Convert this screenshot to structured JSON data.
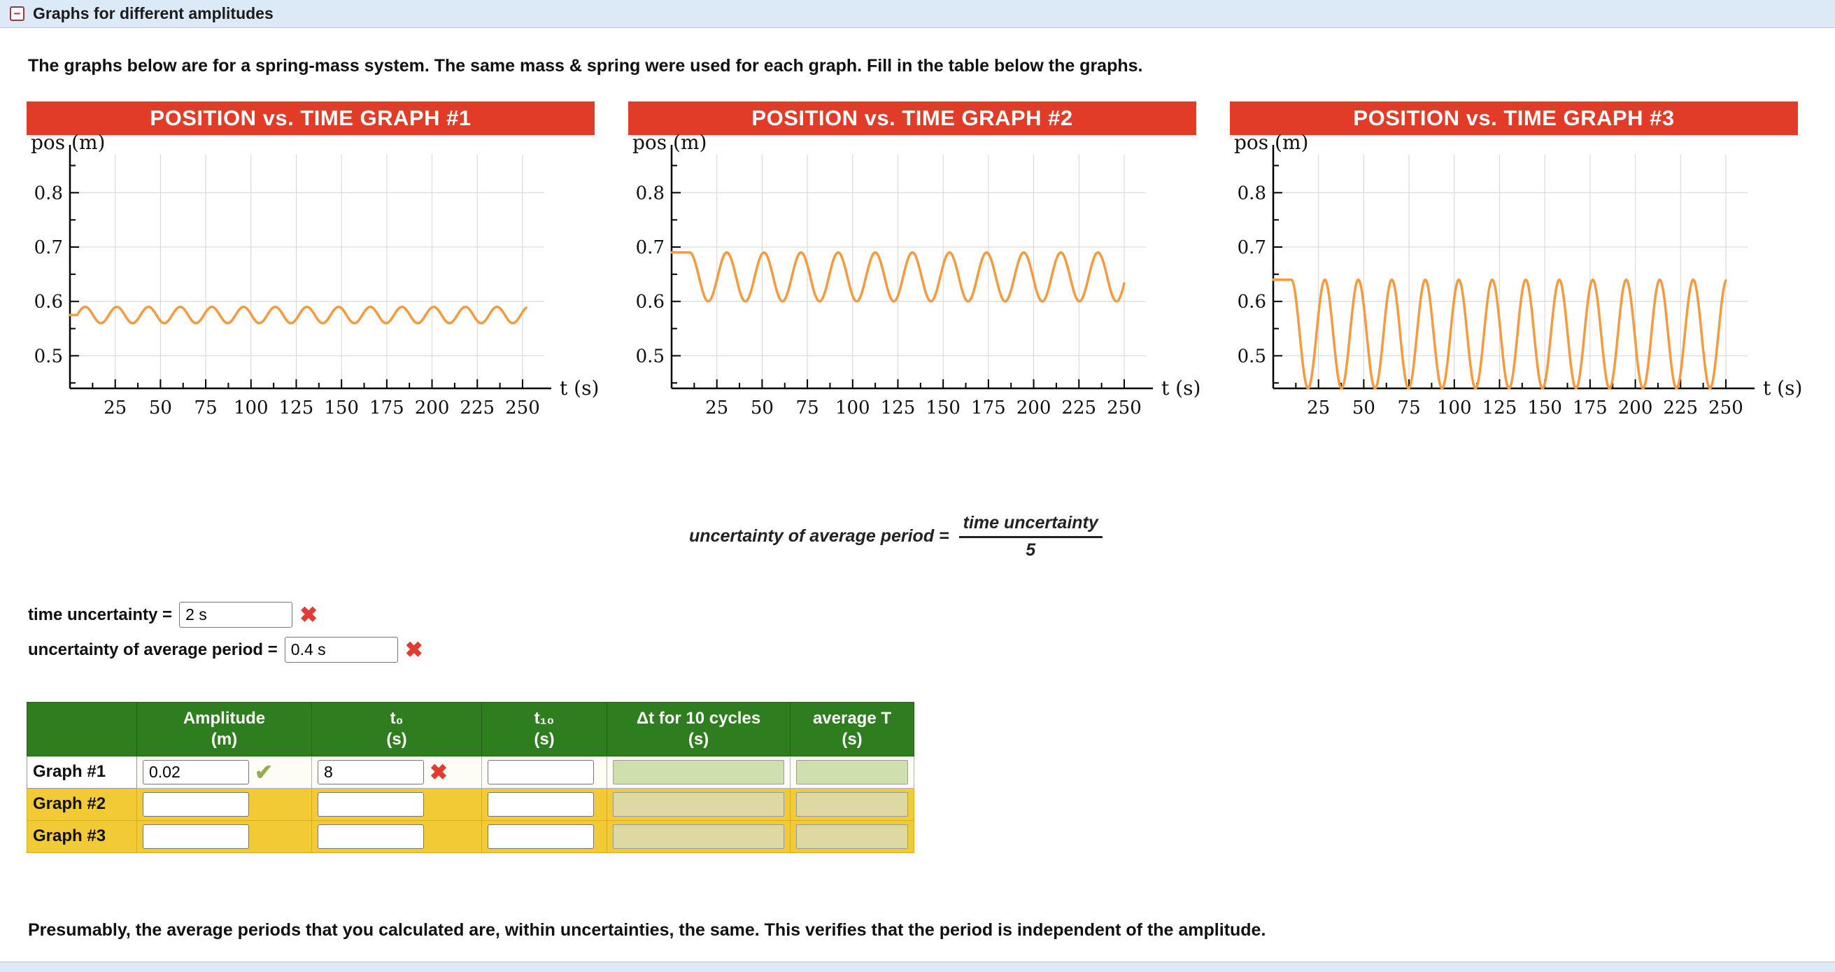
{
  "colors": {
    "banner_red": "#e23b27",
    "wave_orange": "#f79a3e",
    "header_green": "#2e7d1e",
    "row_yellow": "#f1ca35",
    "calc_box_green": "#cfe0ae",
    "calc_box_khaki": "#ded8a2",
    "bar_blue": "#dce9f6",
    "grid_gray": "#d4d4d4"
  },
  "top_bar": {
    "title": "Graphs for different amplitudes"
  },
  "instructions": "The graphs below are for a spring-mass system. The same mass & spring were used for each graph. Fill in the table below the graphs.",
  "chart_data": [
    {
      "type": "line",
      "title": "POSITION vs. TIME GRAPH #1",
      "xlabel": "t (s)",
      "ylabel": "pos (m)",
      "x_ticks": [
        25,
        50,
        75,
        100,
        125,
        150,
        175,
        200,
        225,
        250
      ],
      "y_ticks": [
        0.5,
        0.6,
        0.7,
        0.8
      ],
      "xlim": [
        0,
        262
      ],
      "ylim": [
        0.44,
        0.87
      ],
      "grid": true,
      "series": {
        "flat_until": 4,
        "flat_value": 0.575,
        "center": 0.575,
        "amplitude": 0.015,
        "period": 17.5,
        "mode": "sin",
        "end": 252
      }
    },
    {
      "type": "line",
      "title": "POSITION vs. TIME GRAPH #2",
      "xlabel": "t (s)",
      "ylabel": "pos (m)",
      "x_ticks": [
        25,
        50,
        75,
        100,
        125,
        150,
        175,
        200,
        225,
        250
      ],
      "y_ticks": [
        0.5,
        0.6,
        0.7,
        0.8
      ],
      "xlim": [
        0,
        262
      ],
      "ylim": [
        0.44,
        0.87
      ],
      "grid": true,
      "series": {
        "flat_until": 10,
        "flat_value": 0.69,
        "center": 0.645,
        "amplitude": 0.045,
        "period": 20.5,
        "mode": "cos",
        "end": 250
      }
    },
    {
      "type": "line",
      "title": "POSITION vs. TIME GRAPH #3",
      "xlabel": "t (s)",
      "ylabel": "pos (m)",
      "x_ticks": [
        25,
        50,
        75,
        100,
        125,
        150,
        175,
        200,
        225,
        250
      ],
      "y_ticks": [
        0.5,
        0.6,
        0.7,
        0.8
      ],
      "xlim": [
        0,
        262
      ],
      "ylim": [
        0.44,
        0.87
      ],
      "grid": true,
      "series": {
        "flat_until": 10,
        "flat_value": 0.64,
        "center": 0.54,
        "amplitude": 0.1,
        "period": 18.5,
        "mode": "cos",
        "end": 250
      }
    }
  ],
  "formula": {
    "lhs": "uncertainty of average period =",
    "numerator": "time uncertainty",
    "denominator": "5"
  },
  "uncertainty_fields": [
    {
      "label": "time uncertainty =",
      "value": "2 s",
      "status": "incorrect"
    },
    {
      "label": "uncertainty of average period =",
      "value": "0.4 s",
      "status": "incorrect"
    }
  ],
  "icons": {
    "correct": "✔",
    "incorrect": "✖",
    "collapse": "−"
  },
  "table": {
    "col_headers": [
      {
        "label": "",
        "unit": ""
      },
      {
        "label": "Amplitude",
        "unit": "(m)"
      },
      {
        "label": "t₀",
        "unit": "(s)"
      },
      {
        "label": "t₁₀",
        "unit": "(s)"
      },
      {
        "label": "Δt for 10 cycles",
        "unit": "(s)"
      },
      {
        "label": "average T",
        "unit": "(s)"
      }
    ],
    "rows": [
      {
        "label": "Graph #1",
        "amplitude": "0.02",
        "amplitude_status": "correct",
        "t0": "8",
        "t0_status": "incorrect",
        "t10": ""
      },
      {
        "label": "Graph #2",
        "amplitude": "",
        "t0": "",
        "t10": ""
      },
      {
        "label": "Graph #3",
        "amplitude": "",
        "t0": "",
        "t10": ""
      }
    ]
  },
  "footer_note": "Presumably, the average periods that you calculated are, within uncertainties, the same. This verifies that the period is independent of the amplitude."
}
